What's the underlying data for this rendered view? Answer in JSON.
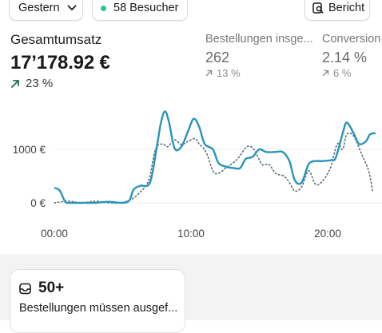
{
  "toolbar": {
    "date_label": "Gestern",
    "visitors_label": "58 Besucher",
    "report_label": "Bericht"
  },
  "metrics": {
    "total_sales": {
      "label": "Gesamtumsatz",
      "value": "17’178.92 €",
      "change": "23 %"
    },
    "orders": {
      "label": "Bestellungen insge...",
      "value": "262",
      "change": "13 %"
    },
    "conversion": {
      "label": "Conversion",
      "value": "2.14 %",
      "change": "6 %"
    }
  },
  "chart_data": {
    "type": "line",
    "x_ticks": [
      "00:00",
      "10:00",
      "20:00"
    ],
    "y_ticks": [
      "0 €",
      "1000 €"
    ],
    "ylim": [
      0,
      1800
    ],
    "xlim": [
      0,
      23.5
    ],
    "series": [
      {
        "style": "solid",
        "color": "#2a93ba",
        "points": [
          [
            0.0,
            280
          ],
          [
            0.4,
            230
          ],
          [
            0.8,
            20
          ],
          [
            1.2,
            0
          ],
          [
            2,
            0
          ],
          [
            3,
            0
          ],
          [
            4,
            20
          ],
          [
            5,
            0
          ],
          [
            5.5,
            50
          ],
          [
            5.8,
            250
          ],
          [
            6.3,
            320
          ],
          [
            7.0,
            380
          ],
          [
            7.5,
            1050
          ],
          [
            7.8,
            1500
          ],
          [
            8.1,
            1710
          ],
          [
            8.4,
            1500
          ],
          [
            8.8,
            1020
          ],
          [
            9.3,
            1050
          ],
          [
            9.8,
            1350
          ],
          [
            10.2,
            1570
          ],
          [
            10.6,
            1420
          ],
          [
            11.0,
            1100
          ],
          [
            11.6,
            1000
          ],
          [
            12.0,
            750
          ],
          [
            12.5,
            680
          ],
          [
            13.1,
            650
          ],
          [
            13.6,
            650
          ],
          [
            14.0,
            820
          ],
          [
            14.5,
            860
          ],
          [
            15.0,
            1000
          ],
          [
            15.5,
            950
          ],
          [
            16.2,
            950
          ],
          [
            16.7,
            950
          ],
          [
            17.2,
            780
          ],
          [
            17.6,
            420
          ],
          [
            18.1,
            380
          ],
          [
            18.6,
            720
          ],
          [
            19.1,
            780
          ],
          [
            19.6,
            780
          ],
          [
            20.3,
            800
          ],
          [
            20.6,
            850
          ],
          [
            21.1,
            1300
          ],
          [
            21.4,
            1500
          ],
          [
            21.9,
            1300
          ],
          [
            22.3,
            1100
          ],
          [
            22.8,
            1150
          ],
          [
            23.1,
            1280
          ],
          [
            23.5,
            1300
          ]
        ]
      },
      {
        "style": "dotted",
        "color": "#5c6f7a",
        "points": [
          [
            0.0,
            0
          ],
          [
            1,
            30
          ],
          [
            2,
            0
          ],
          [
            3,
            30
          ],
          [
            4,
            0
          ],
          [
            4.8,
            0
          ],
          [
            5.6,
            60
          ],
          [
            6.2,
            180
          ],
          [
            6.9,
            420
          ],
          [
            7.4,
            1000
          ],
          [
            7.9,
            1100
          ],
          [
            8.3,
            1050
          ],
          [
            8.8,
            1180
          ],
          [
            9.3,
            1090
          ],
          [
            9.8,
            1150
          ],
          [
            10.3,
            1200
          ],
          [
            10.6,
            1100
          ],
          [
            11.1,
            950
          ],
          [
            11.6,
            600
          ],
          [
            12.0,
            550
          ],
          [
            12.6,
            660
          ],
          [
            13.1,
            750
          ],
          [
            13.5,
            850
          ],
          [
            14.1,
            1050
          ],
          [
            14.6,
            1000
          ],
          [
            15.2,
            720
          ],
          [
            15.7,
            720
          ],
          [
            16.2,
            550
          ],
          [
            16.8,
            500
          ],
          [
            17.2,
            380
          ],
          [
            17.6,
            220
          ],
          [
            18.1,
            300
          ],
          [
            18.6,
            600
          ],
          [
            19.1,
            350
          ],
          [
            19.6,
            400
          ],
          [
            20.2,
            650
          ],
          [
            20.7,
            1100
          ],
          [
            21.1,
            1000
          ],
          [
            21.4,
            1280
          ],
          [
            21.9,
            1250
          ],
          [
            22.5,
            900
          ],
          [
            23.0,
            600
          ],
          [
            23.3,
            200
          ]
        ]
      }
    ]
  },
  "tasks": {
    "count": "50+",
    "text": "Bestellungen müssen ausgef..."
  }
}
